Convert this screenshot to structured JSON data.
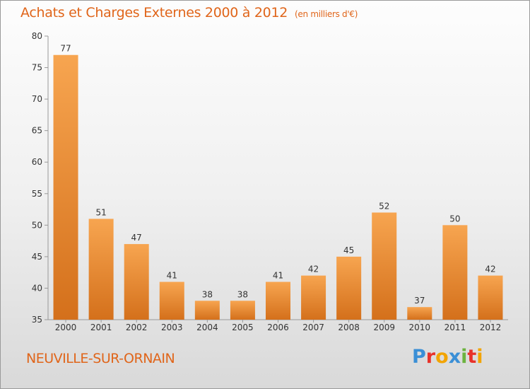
{
  "title": "Achats et Charges Externes 2000 à 2012",
  "unit": "(en milliers d'€)",
  "commune": "NEUVILLE-SUR-ORNAIN",
  "logo": {
    "letters": [
      {
        "char": "P",
        "color": "#3a8fd6"
      },
      {
        "char": "r",
        "color": "#e8322a"
      },
      {
        "char": "o",
        "color": "#f2a400"
      },
      {
        "char": "x",
        "color": "#3a8fd6"
      },
      {
        "char": "i",
        "color": "#6cb33f"
      },
      {
        "char": "t",
        "color": "#e8322a"
      },
      {
        "char": "i",
        "color": "#f2a400"
      }
    ]
  },
  "chart_data": {
    "type": "bar",
    "categories": [
      "2000",
      "2001",
      "2002",
      "2003",
      "2004",
      "2005",
      "2006",
      "2007",
      "2008",
      "2009",
      "2010",
      "2011",
      "2012"
    ],
    "values": [
      77,
      51,
      47,
      41,
      38,
      38,
      41,
      42,
      45,
      52,
      37,
      50,
      42
    ],
    "data_labels": [
      "77",
      "51",
      "47",
      "41",
      "38",
      "38",
      "41",
      "42",
      "45",
      "52",
      "37",
      "50",
      "42"
    ],
    "yticks": [
      "35",
      "40",
      "45",
      "50",
      "55",
      "60",
      "65",
      "70",
      "75",
      "80"
    ],
    "ylim": [
      35,
      80
    ],
    "grid": false,
    "colors": {
      "bar_top": "#f7a550",
      "bar_bottom": "#d4701b",
      "text": "#333333",
      "axis": "#999999"
    }
  }
}
